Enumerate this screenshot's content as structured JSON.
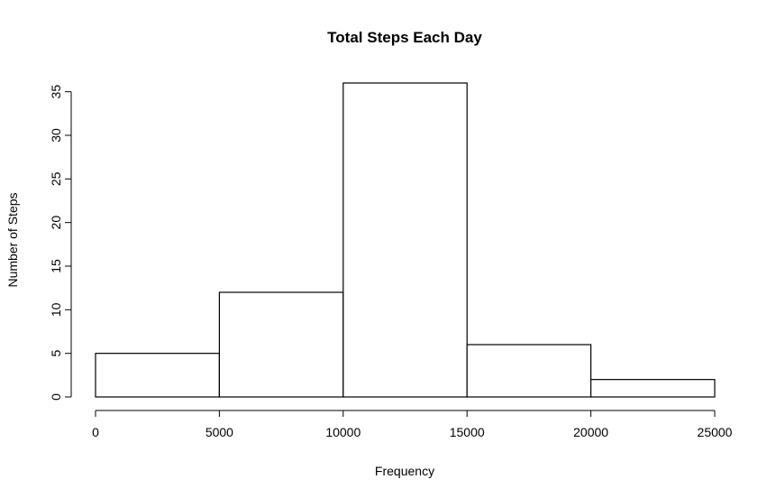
{
  "chart_data": {
    "type": "bar",
    "title": "Total Steps Each Day",
    "xlabel": "Frequency",
    "ylabel": "Number of Steps",
    "bins": [
      {
        "start": 0,
        "end": 5000,
        "count": 5
      },
      {
        "start": 5000,
        "end": 10000,
        "count": 12
      },
      {
        "start": 10000,
        "end": 15000,
        "count": 36
      },
      {
        "start": 15000,
        "end": 20000,
        "count": 6
      },
      {
        "start": 20000,
        "end": 25000,
        "count": 2
      }
    ],
    "xticks": [
      0,
      5000,
      10000,
      15000,
      20000,
      25000
    ],
    "yticks": [
      0,
      5,
      10,
      15,
      20,
      25,
      30,
      35
    ],
    "xlim": [
      0,
      25000
    ],
    "ylim": [
      0,
      36
    ],
    "grid": false,
    "bar_fill": "#ffffff",
    "bar_stroke": "#000000"
  }
}
